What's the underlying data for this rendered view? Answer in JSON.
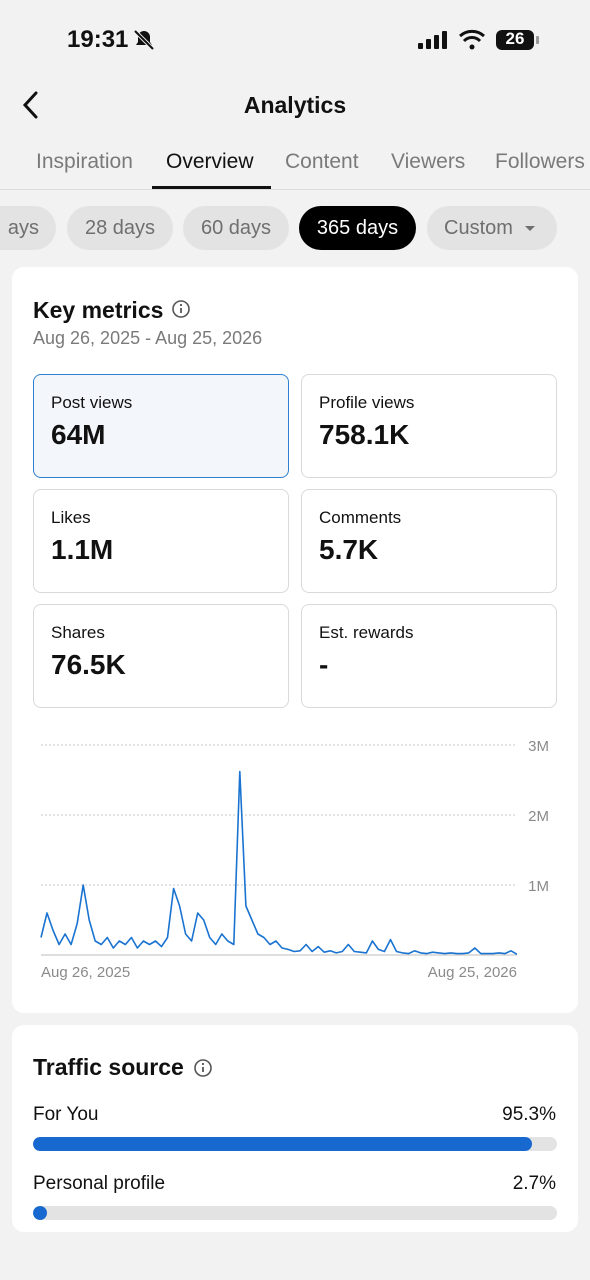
{
  "status": {
    "time": "19:31",
    "battery": "26"
  },
  "header": {
    "title": "Analytics"
  },
  "tabs": [
    "Inspiration",
    "Overview",
    "Content",
    "Viewers",
    "Followers"
  ],
  "filters": [
    "ays",
    "28 days",
    "60 days",
    "365 days",
    "Custom"
  ],
  "key_metrics": {
    "title": "Key metrics",
    "date_range": "Aug 26, 2025 - Aug 25, 2026",
    "metrics": [
      {
        "label": "Post views",
        "value": "64M"
      },
      {
        "label": "Profile views",
        "value": "758.1K"
      },
      {
        "label": "Likes",
        "value": "1.1M"
      },
      {
        "label": "Comments",
        "value": "5.7K"
      },
      {
        "label": "Shares",
        "value": "76.5K"
      },
      {
        "label": "Est. rewards",
        "value": "-"
      }
    ]
  },
  "chart_data": {
    "type": "line",
    "color": "#1a73d0",
    "grid": true,
    "ylim": [
      0,
      3000000
    ],
    "yticks": [
      {
        "value": 1000000,
        "label": "1M"
      },
      {
        "value": 2000000,
        "label": "2M"
      },
      {
        "value": 3000000,
        "label": "3M"
      }
    ],
    "categories": [
      "Aug 26, 2025",
      null,
      null,
      null,
      null,
      null,
      null,
      null,
      null,
      null,
      null,
      null,
      null,
      null,
      null,
      null,
      null,
      null,
      null,
      null,
      null,
      null,
      null,
      null,
      null,
      null,
      null,
      null,
      null,
      null,
      null,
      null,
      null,
      null,
      null,
      null,
      null,
      null,
      null,
      null,
      null,
      null,
      null,
      null,
      null,
      null,
      null,
      null,
      null,
      null,
      null,
      null,
      null,
      null,
      null,
      null,
      null,
      null,
      null,
      null,
      null,
      null,
      null,
      null,
      null,
      null,
      null,
      null,
      null,
      null,
      null,
      null,
      null,
      null,
      null,
      null,
      null,
      null,
      null,
      "Aug 25, 2026"
    ],
    "values": [
      250000,
      600000,
      350000,
      150000,
      300000,
      150000,
      450000,
      1000000,
      500000,
      200000,
      150000,
      250000,
      100000,
      200000,
      150000,
      250000,
      100000,
      200000,
      150000,
      200000,
      120000,
      250000,
      950000,
      700000,
      300000,
      200000,
      600000,
      500000,
      250000,
      150000,
      300000,
      200000,
      150000,
      2620000,
      700000,
      500000,
      300000,
      250000,
      150000,
      200000,
      100000,
      80000,
      50000,
      60000,
      150000,
      50000,
      120000,
      40000,
      60000,
      30000,
      50000,
      150000,
      50000,
      40000,
      30000,
      200000,
      80000,
      50000,
      220000,
      50000,
      30000,
      20000,
      60000,
      30000,
      20000,
      40000,
      30000,
      20000,
      30000,
      20000,
      20000,
      30000,
      100000,
      20000,
      20000,
      20000,
      30000,
      20000,
      60000,
      10000
    ]
  },
  "traffic_source": {
    "title": "Traffic source",
    "xlim": [
      0,
      100
    ],
    "items": [
      {
        "name": "For You",
        "value": 95.3,
        "value_label": "95.3%"
      },
      {
        "name": "Personal profile",
        "value": 2.7,
        "value_label": "2.7%"
      }
    ]
  }
}
